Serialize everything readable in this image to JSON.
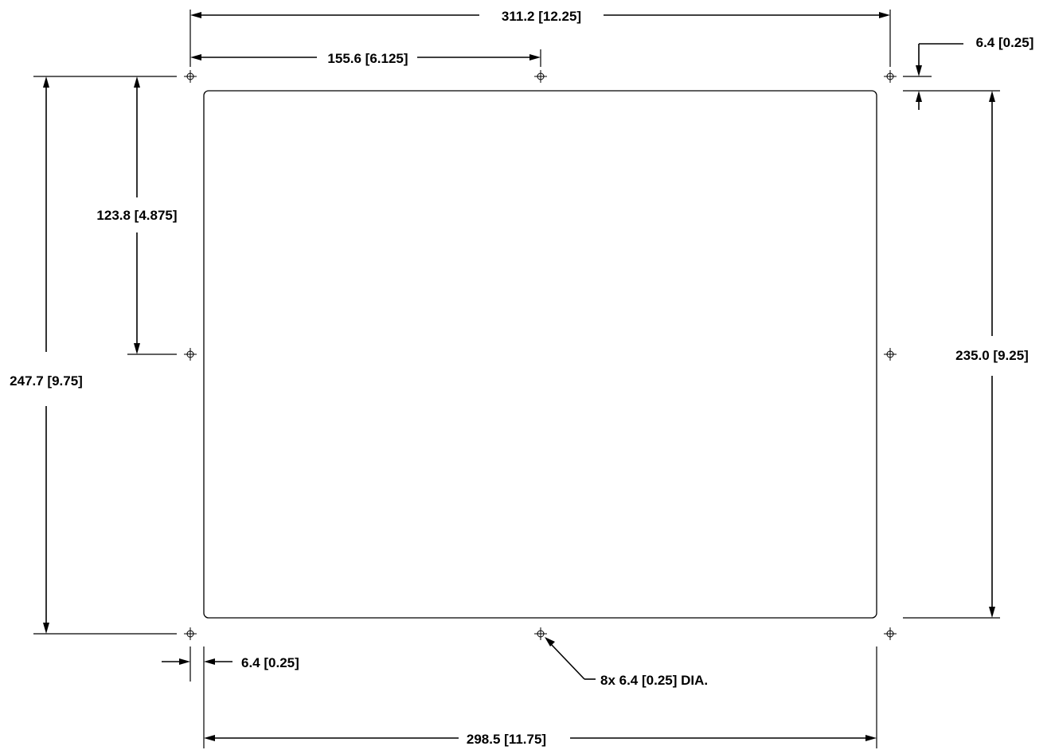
{
  "dimensions": {
    "overall_hole_width": "311.2 [12.25]",
    "half_hole_width": "155.6 [6.125]",
    "top_offset": "6.4 [0.25]",
    "half_hole_height": "123.8 [4.875]",
    "overall_hole_height": "247.7 [9.75]",
    "cutout_height": "235.0 [9.25]",
    "left_offset": "6.4 [0.25]",
    "hole_callout": "8x 6.4 [0.25] DIA.",
    "cutout_width": "298.5 [11.75]"
  }
}
